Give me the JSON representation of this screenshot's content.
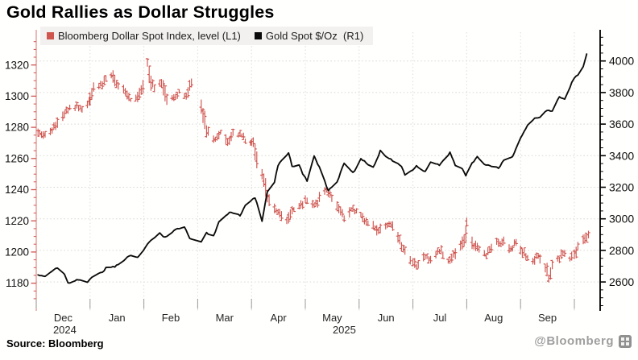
{
  "chart_data": {
    "type": "line",
    "title": "Gold Rallies as Dollar Struggles",
    "source": "Source: Bloomberg",
    "watermark": "@Bloomberg",
    "grid": true,
    "legend_position": "top",
    "x_axis": {
      "tick_labels": [
        "Dec",
        "Jan",
        "Feb",
        "Mar",
        "Apr",
        "May",
        "Jun",
        "Jul",
        "Aug",
        "Sep"
      ],
      "year_labels": [
        {
          "text": "2024",
          "month_index": 0
        },
        {
          "text": "2025",
          "month_index": 5
        }
      ],
      "range": [
        "2024-12-01",
        "2025-10-13"
      ]
    },
    "left_axis": {
      "label": "Bloomberg Dollar Spot Index",
      "ticks": [
        1320,
        1300,
        1280,
        1260,
        1240,
        1220,
        1200,
        1180
      ],
      "minor_step": 5,
      "color": "#cf554f"
    },
    "right_axis": {
      "label": "Gold Spot $/Oz",
      "ticks": [
        4000,
        3800,
        3600,
        3400,
        3200,
        3000,
        2800,
        2600
      ],
      "minor_step": 50,
      "color": "#000000"
    },
    "series": [
      {
        "name": "Bloomberg Dollar Spot Index, level (L1)",
        "axis": "left",
        "style": "ohlc_bars",
        "color": "#cf554f",
        "points": [
          [
            "2024-11-28",
            1281
          ],
          [
            "2024-12-03",
            1277
          ],
          [
            "2024-12-06",
            1275
          ],
          [
            "2024-12-10",
            1279
          ],
          [
            "2024-12-13",
            1283
          ],
          [
            "2024-12-18",
            1291
          ],
          [
            "2024-12-23",
            1294
          ],
          [
            "2024-12-27",
            1293
          ],
          [
            "2024-12-31",
            1297
          ],
          [
            "2025-01-03",
            1305
          ],
          [
            "2025-01-08",
            1308
          ],
          [
            "2025-01-10",
            1311
          ],
          [
            "2025-01-13",
            1314
          ],
          [
            "2025-01-16",
            1308
          ],
          [
            "2025-01-21",
            1302
          ],
          [
            "2025-01-24",
            1297
          ],
          [
            "2025-01-28",
            1300
          ],
          [
            "2025-01-31",
            1306
          ],
          [
            "2025-02-03",
            1322
          ],
          [
            "2025-02-05",
            1309
          ],
          [
            "2025-02-07",
            1306
          ],
          [
            "2025-02-11",
            1310
          ],
          [
            "2025-02-14",
            1297
          ],
          [
            "2025-02-19",
            1300
          ],
          [
            "2025-02-21",
            1302
          ],
          [
            "2025-02-25",
            1301
          ],
          [
            "2025-02-28",
            1308
          ],
          [
            "2025-03-04",
            1289
          ],
          [
            "2025-03-06",
            1278
          ],
          [
            "2025-03-11",
            1272
          ],
          [
            "2025-03-14",
            1276
          ],
          [
            "2025-03-18",
            1270
          ],
          [
            "2025-03-21",
            1276
          ],
          [
            "2025-03-26",
            1274
          ],
          [
            "2025-03-31",
            1269
          ],
          [
            "2025-04-02",
            1271
          ],
          [
            "2025-04-04",
            1258
          ],
          [
            "2025-04-08",
            1246
          ],
          [
            "2025-04-10",
            1236
          ],
          [
            "2025-04-14",
            1227
          ],
          [
            "2025-04-17",
            1225
          ],
          [
            "2025-04-21",
            1219
          ],
          [
            "2025-04-24",
            1227
          ],
          [
            "2025-04-29",
            1231
          ],
          [
            "2025-05-02",
            1233
          ],
          [
            "2025-05-07",
            1230
          ],
          [
            "2025-05-12",
            1240
          ],
          [
            "2025-05-15",
            1237
          ],
          [
            "2025-05-20",
            1228
          ],
          [
            "2025-05-23",
            1222
          ],
          [
            "2025-05-27",
            1227
          ],
          [
            "2025-05-30",
            1226
          ],
          [
            "2025-06-04",
            1221
          ],
          [
            "2025-06-09",
            1217
          ],
          [
            "2025-06-12",
            1214
          ],
          [
            "2025-06-17",
            1218
          ],
          [
            "2025-06-20",
            1216
          ],
          [
            "2025-06-24",
            1207
          ],
          [
            "2025-06-26",
            1202
          ],
          [
            "2025-06-30",
            1196
          ],
          [
            "2025-07-03",
            1191
          ],
          [
            "2025-07-08",
            1197
          ],
          [
            "2025-07-11",
            1195
          ],
          [
            "2025-07-16",
            1201
          ],
          [
            "2025-07-21",
            1195
          ],
          [
            "2025-07-24",
            1198
          ],
          [
            "2025-07-29",
            1205
          ],
          [
            "2025-07-31",
            1211
          ],
          [
            "2025-08-01",
            1219
          ],
          [
            "2025-08-04",
            1206
          ],
          [
            "2025-08-07",
            1202
          ],
          [
            "2025-08-12",
            1199
          ],
          [
            "2025-08-15",
            1203
          ],
          [
            "2025-08-19",
            1206
          ],
          [
            "2025-08-22",
            1208
          ],
          [
            "2025-08-26",
            1202
          ],
          [
            "2025-08-29",
            1205
          ],
          [
            "2025-09-03",
            1199
          ],
          [
            "2025-09-08",
            1195
          ],
          [
            "2025-09-11",
            1197
          ],
          [
            "2025-09-16",
            1188
          ],
          [
            "2025-09-17",
            1184
          ],
          [
            "2025-09-19",
            1191
          ],
          [
            "2025-09-23",
            1196
          ],
          [
            "2025-09-25",
            1199
          ],
          [
            "2025-09-29",
            1196
          ],
          [
            "2025-10-01",
            1199
          ],
          [
            "2025-10-03",
            1203
          ],
          [
            "2025-10-07",
            1208
          ],
          [
            "2025-10-09",
            1211
          ]
        ]
      },
      {
        "name": "Gold Spot $/Oz  (R1)",
        "axis": "right",
        "style": "line",
        "color": "#0b0b0b",
        "points": [
          [
            "2024-11-28",
            2650
          ],
          [
            "2024-12-03",
            2643
          ],
          [
            "2024-12-06",
            2633
          ],
          [
            "2024-12-10",
            2672
          ],
          [
            "2024-12-13",
            2690
          ],
          [
            "2024-12-17",
            2645
          ],
          [
            "2024-12-19",
            2592
          ],
          [
            "2024-12-24",
            2615
          ],
          [
            "2024-12-30",
            2598
          ],
          [
            "2025-01-03",
            2640
          ],
          [
            "2025-01-08",
            2662
          ],
          [
            "2025-01-10",
            2688
          ],
          [
            "2025-01-15",
            2695
          ],
          [
            "2025-01-21",
            2745
          ],
          [
            "2025-01-24",
            2770
          ],
          [
            "2025-01-28",
            2755
          ],
          [
            "2025-01-31",
            2800
          ],
          [
            "2025-02-05",
            2866
          ],
          [
            "2025-02-10",
            2906
          ],
          [
            "2025-02-13",
            2880
          ],
          [
            "2025-02-19",
            2935
          ],
          [
            "2025-02-24",
            2950
          ],
          [
            "2025-02-27",
            2878
          ],
          [
            "2025-03-03",
            2858
          ],
          [
            "2025-03-06",
            2912
          ],
          [
            "2025-03-10",
            2890
          ],
          [
            "2025-03-13",
            2985
          ],
          [
            "2025-03-18",
            3030
          ],
          [
            "2025-03-20",
            3045
          ],
          [
            "2025-03-25",
            3020
          ],
          [
            "2025-03-28",
            3085
          ],
          [
            "2025-04-01",
            3120
          ],
          [
            "2025-04-03",
            3135
          ],
          [
            "2025-04-07",
            2985
          ],
          [
            "2025-04-10",
            3175
          ],
          [
            "2025-04-14",
            3230
          ],
          [
            "2025-04-16",
            3340
          ],
          [
            "2025-04-22",
            3420
          ],
          [
            "2025-04-24",
            3330
          ],
          [
            "2025-04-28",
            3340
          ],
          [
            "2025-04-30",
            3285
          ],
          [
            "2025-05-02",
            3240
          ],
          [
            "2025-05-06",
            3400
          ],
          [
            "2025-05-09",
            3325
          ],
          [
            "2025-05-14",
            3180
          ],
          [
            "2025-05-19",
            3230
          ],
          [
            "2025-05-23",
            3355
          ],
          [
            "2025-05-28",
            3290
          ],
          [
            "2025-06-02",
            3380
          ],
          [
            "2025-06-05",
            3355
          ],
          [
            "2025-06-09",
            3325
          ],
          [
            "2025-06-13",
            3430
          ],
          [
            "2025-06-17",
            3385
          ],
          [
            "2025-06-20",
            3370
          ],
          [
            "2025-06-25",
            3330
          ],
          [
            "2025-06-27",
            3275
          ],
          [
            "2025-06-30",
            3300
          ],
          [
            "2025-07-03",
            3335
          ],
          [
            "2025-07-08",
            3300
          ],
          [
            "2025-07-11",
            3355
          ],
          [
            "2025-07-16",
            3340
          ],
          [
            "2025-07-22",
            3420
          ],
          [
            "2025-07-25",
            3340
          ],
          [
            "2025-07-29",
            3315
          ],
          [
            "2025-07-31",
            3270
          ],
          [
            "2025-08-04",
            3355
          ],
          [
            "2025-08-07",
            3390
          ],
          [
            "2025-08-11",
            3345
          ],
          [
            "2025-08-14",
            3340
          ],
          [
            "2025-08-19",
            3320
          ],
          [
            "2025-08-22",
            3370
          ],
          [
            "2025-08-27",
            3395
          ],
          [
            "2025-08-29",
            3445
          ],
          [
            "2025-09-02",
            3530
          ],
          [
            "2025-09-05",
            3590
          ],
          [
            "2025-09-09",
            3640
          ],
          [
            "2025-09-12",
            3645
          ],
          [
            "2025-09-16",
            3690
          ],
          [
            "2025-09-19",
            3685
          ],
          [
            "2025-09-23",
            3775
          ],
          [
            "2025-09-26",
            3760
          ],
          [
            "2025-09-30",
            3860
          ],
          [
            "2025-10-01",
            3890
          ],
          [
            "2025-10-03",
            3910
          ],
          [
            "2025-10-06",
            3960
          ],
          [
            "2025-10-08",
            4045
          ]
        ]
      }
    ]
  }
}
